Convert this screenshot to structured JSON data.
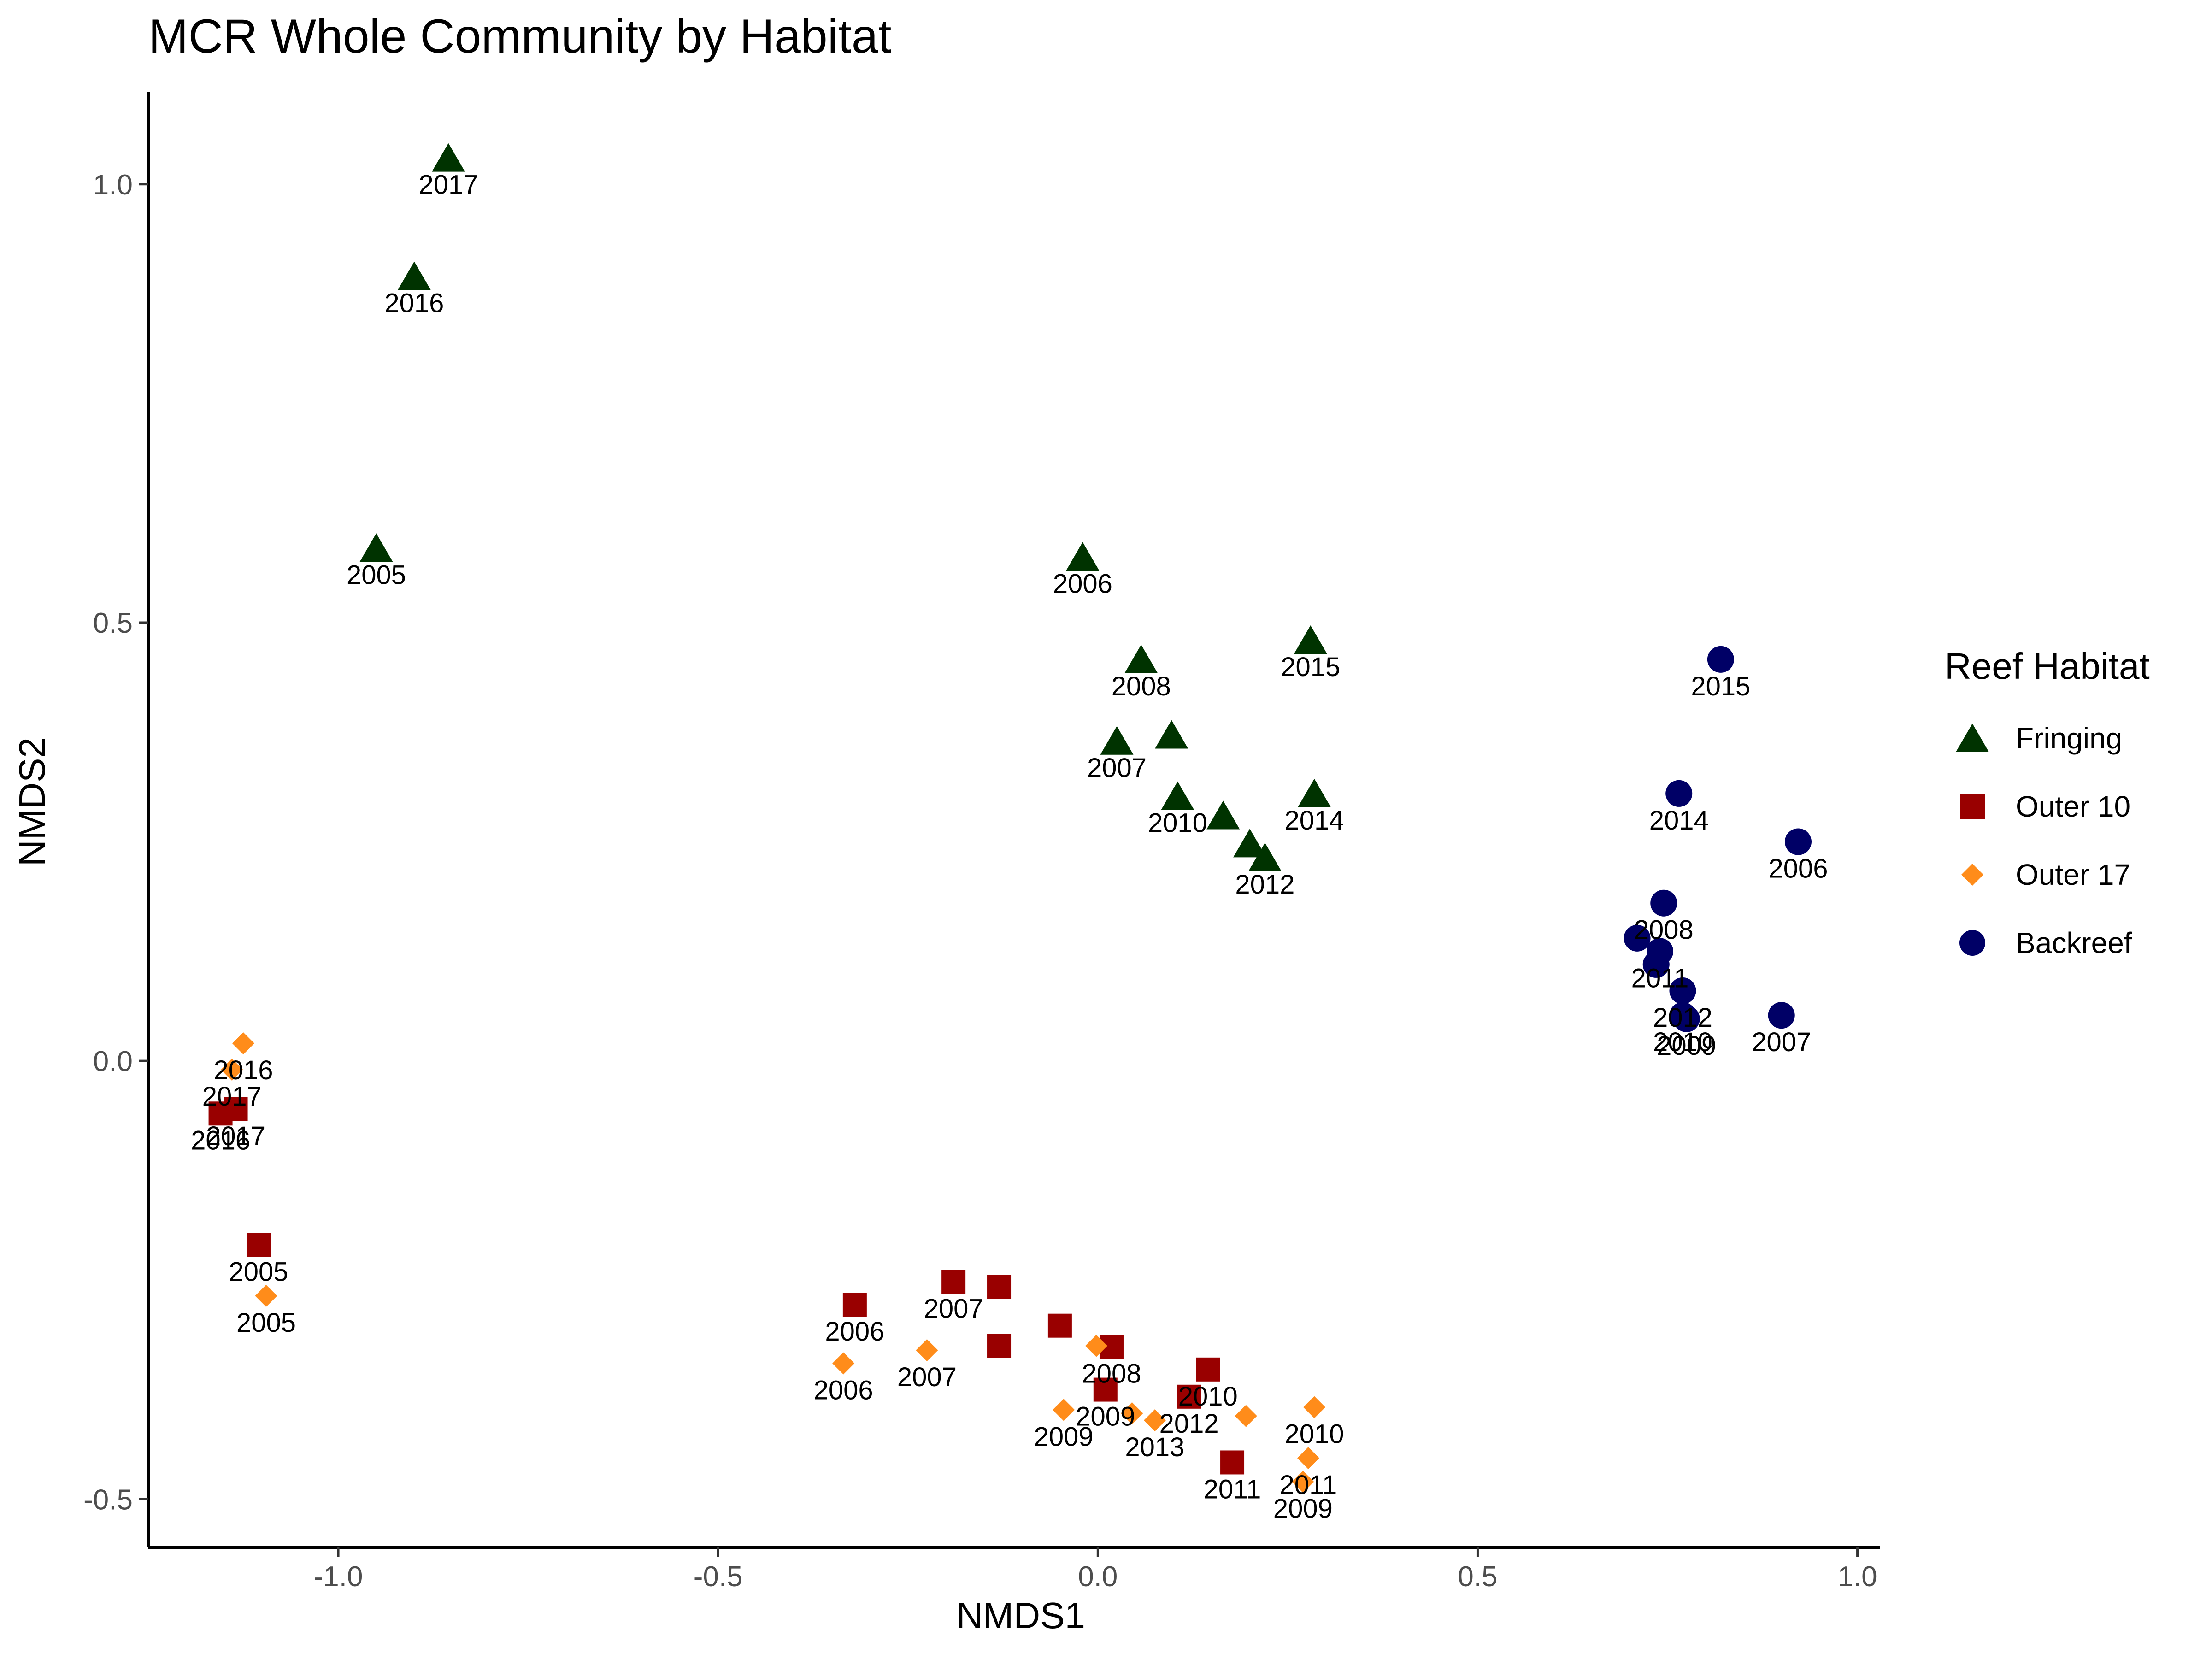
{
  "chart_data": {
    "type": "scatter",
    "title": "MCR Whole Community by Habitat",
    "xlabel": "NMDS1",
    "ylabel": "NMDS2",
    "xlim": [
      -1.25,
      1.03
    ],
    "ylim": [
      -0.555,
      1.105
    ],
    "xticks": [
      -1.0,
      -0.5,
      0.0,
      0.5,
      1.0
    ],
    "xtick_labels": [
      "-1.0",
      "-0.5",
      "0.0",
      "0.5",
      "1.0"
    ],
    "yticks": [
      -0.5,
      0.0,
      0.5,
      1.0
    ],
    "ytick_labels": [
      "-0.5",
      "0.0",
      "0.5",
      "1.0"
    ],
    "grid": false,
    "legend_title": "Reef Habitat",
    "legend_position": "right",
    "series": [
      {
        "name": "Fringing",
        "marker": "triangle",
        "color": "#003300",
        "points": [
          {
            "x": -0.855,
            "y": 1.03,
            "label": "2017"
          },
          {
            "x": -0.9,
            "y": 0.895,
            "label": "2016"
          },
          {
            "x": -0.95,
            "y": 0.585,
            "label": "2005"
          },
          {
            "x": -0.02,
            "y": 0.575,
            "label": "2006"
          },
          {
            "x": 0.057,
            "y": 0.458,
            "label": "2008"
          },
          {
            "x": 0.28,
            "y": 0.48,
            "label": "2015"
          },
          {
            "x": 0.025,
            "y": 0.365,
            "label": "2007"
          },
          {
            "x": 0.097,
            "y": 0.372,
            "label": ""
          },
          {
            "x": 0.105,
            "y": 0.302,
            "label": "2010"
          },
          {
            "x": 0.165,
            "y": 0.28,
            "label": ""
          },
          {
            "x": 0.2,
            "y": 0.248,
            "label": ""
          },
          {
            "x": 0.22,
            "y": 0.232,
            "label": "2012"
          },
          {
            "x": 0.285,
            "y": 0.305,
            "label": "2014"
          }
        ]
      },
      {
        "name": "Outer 10",
        "marker": "square",
        "color": "#990000",
        "points": [
          {
            "x": -1.135,
            "y": -0.055,
            "label": "2017"
          },
          {
            "x": -1.155,
            "y": -0.06,
            "label": "2016"
          },
          {
            "x": -1.105,
            "y": -0.21,
            "label": "2005"
          },
          {
            "x": -0.32,
            "y": -0.278,
            "label": "2006"
          },
          {
            "x": -0.19,
            "y": -0.252,
            "label": "2007"
          },
          {
            "x": -0.13,
            "y": -0.258,
            "label": ""
          },
          {
            "x": -0.13,
            "y": -0.325,
            "label": ""
          },
          {
            "x": -0.05,
            "y": -0.302,
            "label": ""
          },
          {
            "x": 0.018,
            "y": -0.326,
            "label": "2008"
          },
          {
            "x": 0.01,
            "y": -0.375,
            "label": "2009"
          },
          {
            "x": 0.145,
            "y": -0.352,
            "label": "2010"
          },
          {
            "x": 0.12,
            "y": -0.383,
            "label": "2012"
          },
          {
            "x": 0.177,
            "y": -0.458,
            "label": "2011"
          }
        ]
      },
      {
        "name": "Outer 17",
        "marker": "diamond",
        "color": "#FF8C1A",
        "points": [
          {
            "x": -1.125,
            "y": 0.02,
            "label": "2016"
          },
          {
            "x": -1.14,
            "y": -0.01,
            "label": "2017"
          },
          {
            "x": -1.095,
            "y": -0.268,
            "label": "2005"
          },
          {
            "x": -0.335,
            "y": -0.345,
            "label": "2006"
          },
          {
            "x": -0.225,
            "y": -0.33,
            "label": "2007"
          },
          {
            "x": -0.002,
            "y": -0.325,
            "label": ""
          },
          {
            "x": -0.045,
            "y": -0.398,
            "label": "2009"
          },
          {
            "x": 0.045,
            "y": -0.402,
            "label": ""
          },
          {
            "x": 0.075,
            "y": -0.41,
            "label": "2013"
          },
          {
            "x": 0.195,
            "y": -0.405,
            "label": ""
          },
          {
            "x": 0.285,
            "y": -0.395,
            "label": "2010"
          },
          {
            "x": 0.277,
            "y": -0.453,
            "label": "2011"
          },
          {
            "x": 0.27,
            "y": -0.48,
            "label": "2009"
          }
        ]
      },
      {
        "name": "Backreef",
        "marker": "circle",
        "color": "#000066",
        "points": [
          {
            "x": 0.82,
            "y": 0.458,
            "label": "2015"
          },
          {
            "x": 0.765,
            "y": 0.305,
            "label": "2014"
          },
          {
            "x": 0.922,
            "y": 0.25,
            "label": "2006"
          },
          {
            "x": 0.745,
            "y": 0.18,
            "label": "2008"
          },
          {
            "x": 0.71,
            "y": 0.14,
            "label": ""
          },
          {
            "x": 0.74,
            "y": 0.125,
            "label": "2011"
          },
          {
            "x": 0.735,
            "y": 0.11,
            "label": ""
          },
          {
            "x": 0.77,
            "y": 0.08,
            "label": "2012"
          },
          {
            "x": 0.77,
            "y": 0.052,
            "label": "2010"
          },
          {
            "x": 0.775,
            "y": 0.048,
            "label": "2009"
          },
          {
            "x": 0.9,
            "y": 0.052,
            "label": "2007"
          }
        ]
      }
    ]
  }
}
